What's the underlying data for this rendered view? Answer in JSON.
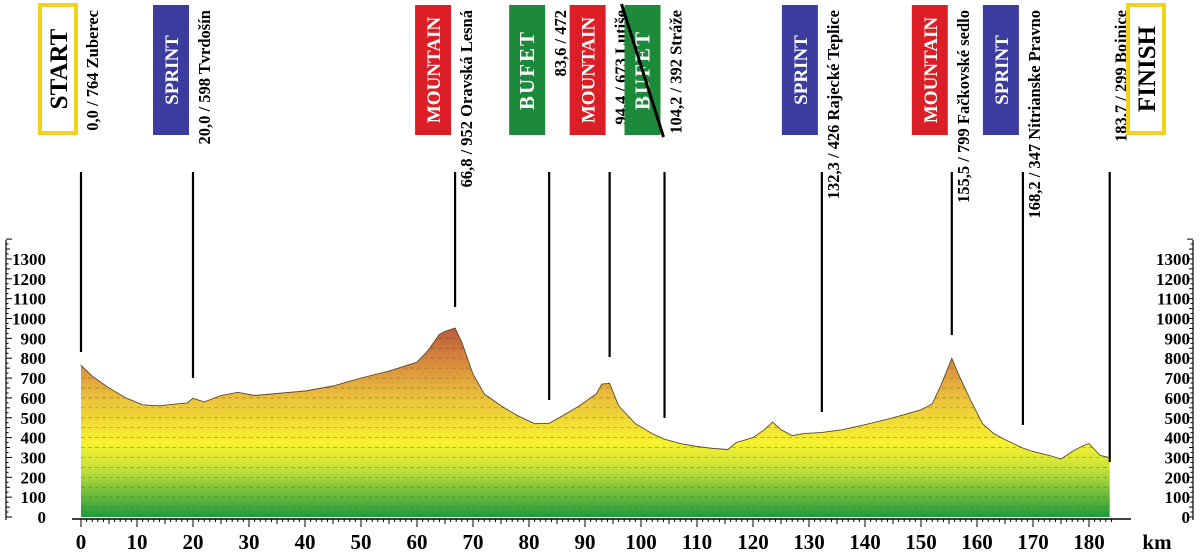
{
  "chart_data": {
    "type": "area",
    "title": "",
    "xlabel": "km",
    "ylabel": "",
    "xlim": [
      0,
      184
    ],
    "ylim": [
      0,
      1400
    ],
    "x_ticks": [
      0,
      10,
      20,
      30,
      40,
      50,
      60,
      70,
      80,
      90,
      100,
      110,
      120,
      130,
      140,
      150,
      160,
      170,
      180
    ],
    "y_ticks": [
      0,
      100,
      200,
      300,
      400,
      500,
      600,
      700,
      800,
      900,
      1000,
      1100,
      1200,
      1300
    ],
    "grid": "horizontal dashed lines every 50 m inside the profile",
    "fill_gradient": [
      "#1f9a3c",
      "#f7f230",
      "#e8b83a",
      "#b8503a"
    ],
    "profile": [
      [
        0,
        764
      ],
      [
        2,
        710
      ],
      [
        5,
        650
      ],
      [
        8,
        600
      ],
      [
        11,
        565
      ],
      [
        14,
        560
      ],
      [
        17,
        570
      ],
      [
        19,
        575
      ],
      [
        20,
        598
      ],
      [
        22,
        580
      ],
      [
        25,
        612
      ],
      [
        28,
        628
      ],
      [
        31,
        612
      ],
      [
        35,
        622
      ],
      [
        40,
        635
      ],
      [
        45,
        660
      ],
      [
        50,
        700
      ],
      [
        55,
        735
      ],
      [
        60,
        780
      ],
      [
        62,
        840
      ],
      [
        64,
        920
      ],
      [
        65,
        935
      ],
      [
        66.8,
        952
      ],
      [
        68,
        880
      ],
      [
        70,
        720
      ],
      [
        72,
        620
      ],
      [
        75,
        560
      ],
      [
        78,
        510
      ],
      [
        81,
        470
      ],
      [
        83.6,
        472
      ],
      [
        86,
        510
      ],
      [
        89,
        560
      ],
      [
        92,
        620
      ],
      [
        93,
        670
      ],
      [
        94.4,
        673
      ],
      [
        96,
        560
      ],
      [
        99,
        470
      ],
      [
        102,
        420
      ],
      [
        104.2,
        392
      ],
      [
        107,
        370
      ],
      [
        110,
        355
      ],
      [
        113,
        345
      ],
      [
        115.5,
        340
      ],
      [
        117,
        375
      ],
      [
        120,
        400
      ],
      [
        122,
        440
      ],
      [
        123.5,
        478
      ],
      [
        125,
        440
      ],
      [
        127,
        410
      ],
      [
        129,
        420
      ],
      [
        132.3,
        426
      ],
      [
        136,
        440
      ],
      [
        140,
        465
      ],
      [
        145,
        500
      ],
      [
        150,
        540
      ],
      [
        152,
        570
      ],
      [
        153.5,
        660
      ],
      [
        155.5,
        799
      ],
      [
        157,
        700
      ],
      [
        159,
        580
      ],
      [
        161,
        470
      ],
      [
        163,
        420
      ],
      [
        165,
        390
      ],
      [
        168.2,
        347
      ],
      [
        170,
        330
      ],
      [
        173,
        310
      ],
      [
        175,
        292
      ],
      [
        177,
        330
      ],
      [
        179,
        360
      ],
      [
        180,
        370
      ],
      [
        182,
        310
      ],
      [
        183.7,
        299
      ]
    ],
    "points": [
      {
        "km": 0,
        "text": "0,0 / 764 Zuberec",
        "box": "START",
        "box_type": "start"
      },
      {
        "km": 20,
        "text": "20,0 / 598 Tvrdošín",
        "box": "SPRINT",
        "box_type": "sprint"
      },
      {
        "km": 66.8,
        "text": "66,8 / 952 Oravská Lesná",
        "box": "MOUNTAIN",
        "box_type": "mountain"
      },
      {
        "km": 83.6,
        "text": "83,6 / 472",
        "box": "BUFET",
        "box_type": "bufet"
      },
      {
        "km": 94.4,
        "text": "94,4 / 673 Lutiše",
        "box": "MOUNTAIN",
        "box_type": "mountain"
      },
      {
        "km": 104.2,
        "text": "104,2 / 392 Stráže",
        "box": "BUFET",
        "box_type": "bufet-crossed"
      },
      {
        "km": 132.3,
        "text": "132,3 / 426 Rajecké Teplice",
        "box": "SPRINT",
        "box_type": "sprint"
      },
      {
        "km": 155.5,
        "text": "155,5 / 799 Fačkovské sedlo",
        "box": "MOUNTAIN",
        "box_type": "mountain"
      },
      {
        "km": 168.2,
        "text": "168,2 / 347 Nitrianske Pravno",
        "box": "SPRINT",
        "box_type": "sprint"
      },
      {
        "km": 183.7,
        "text": "183,7 / 299 Bojnice",
        "box": "FINISH",
        "box_type": "finish"
      }
    ],
    "box_colors": {
      "sprint": "#3b3c9e",
      "mountain": "#dc1f26",
      "bufet": "#1d8a3b",
      "start_border": "#f3d21a"
    }
  }
}
